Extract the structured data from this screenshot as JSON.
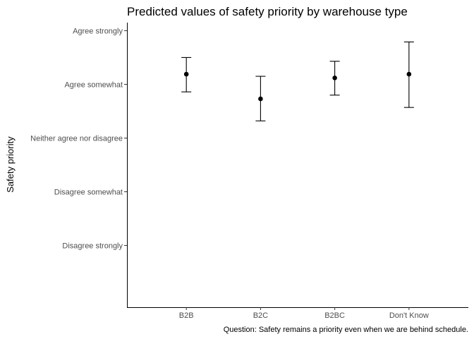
{
  "chart_data": {
    "type": "scatter",
    "title": "Predicted values of safety priority by warehouse type",
    "xlabel": "",
    "ylabel": "Safety priority",
    "caption": "Question: Safety remains a priority even when we are behind schedule.",
    "categories": [
      "B2B",
      "B2C",
      "B2BC",
      "Don't Know"
    ],
    "y_levels": [
      "Disagree strongly",
      "Disagree somewhat",
      "Neither agree nor disagree",
      "Agree somewhat",
      "Agree strongly"
    ],
    "y_level_values": [
      1,
      2,
      3,
      4,
      5
    ],
    "ylim": [
      -0.15,
      5.15
    ],
    "grid": false,
    "legend": "none",
    "series": [
      {
        "values": [
          4.19,
          3.73,
          4.12,
          4.19
        ],
        "lower": [
          3.86,
          3.32,
          3.8,
          3.57
        ],
        "upper": [
          4.5,
          4.15,
          4.43,
          4.79
        ]
      }
    ]
  }
}
